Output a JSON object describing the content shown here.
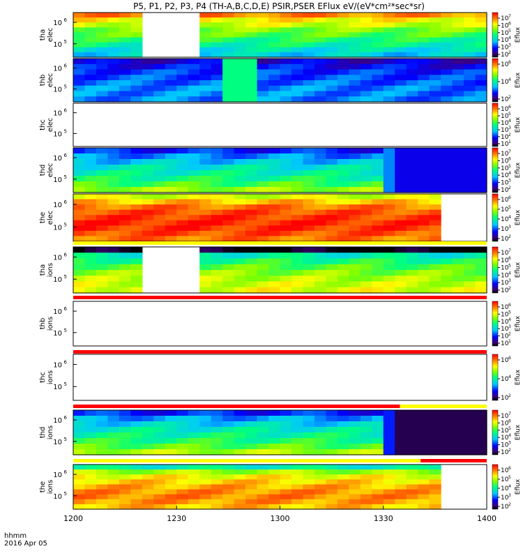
{
  "chart_data": {
    "type": "heatmap",
    "title": "P5, P1, P2, P3, P4 (TH-A,B,C,D,E) PSIR,PSER EFlux eV/(eV*cm²*sec*sr)",
    "x_axis": {
      "ticks": [
        "1200",
        "1230",
        "1300",
        "1330",
        "1400"
      ],
      "label_line1": "hhmm",
      "label_line2": "2016 Apr 05"
    },
    "colorbar_label": "Eflux",
    "panels": [
      {
        "probe": "tha",
        "species": "elec",
        "yticks": [
          6,
          5
        ],
        "cbar": [
          2,
          3,
          4,
          5,
          6,
          7
        ],
        "bands": [
          0.86,
          0.75,
          0.7,
          0.62,
          0.58,
          0.52,
          0.48,
          0.42,
          0.38
        ],
        "gaps": [
          [
            0.15,
            0.3
          ]
        ],
        "fills": [],
        "status": null
      },
      {
        "probe": "thb",
        "species": "elec",
        "yticks": [
          6,
          5
        ],
        "cbar": [
          2,
          4,
          6
        ],
        "bands": [
          0.16,
          0.2,
          0.24,
          0.26,
          0.28,
          0.3,
          0.3,
          0.3
        ],
        "gaps": [],
        "fills": [
          {
            "x0": 0.35,
            "x1": 0.43,
            "val": 0.5
          }
        ],
        "status": null
      },
      {
        "probe": "thc",
        "species": "elec",
        "yticks": [
          6,
          5
        ],
        "cbar": [
          1,
          2,
          3,
          4,
          5,
          6
        ],
        "bands": [],
        "gaps": [
          [
            0,
            1
          ]
        ],
        "fills": [],
        "status": null
      },
      {
        "probe": "thd",
        "species": "elec",
        "yticks": [
          6,
          5
        ],
        "cbar": [
          2,
          3,
          4,
          5,
          6,
          7
        ],
        "bands": [
          0.22,
          0.3,
          0.36,
          0.42,
          0.46,
          0.5,
          0.56,
          0.64
        ],
        "gaps": [],
        "fills": [
          {
            "x0": 0.73,
            "x1": 0.76,
            "val": 0.3
          },
          {
            "x0": 0.76,
            "x1": 1,
            "val": 0.18
          }
        ],
        "status": null
      },
      {
        "probe": "the",
        "species": "elec",
        "yticks": [
          6,
          5
        ],
        "cbar": [
          2,
          3,
          4,
          5,
          6
        ],
        "bands": [
          0.7,
          0.8,
          0.88,
          0.92,
          0.94,
          0.96,
          0.95,
          0.92,
          0.88
        ],
        "gaps": [
          [
            0.88,
            1
          ]
        ],
        "fills": [],
        "status": null
      },
      {
        "probe": "tha",
        "species": "ions",
        "yticks": [
          6,
          5
        ],
        "cbar": [
          2,
          3,
          4,
          5,
          6,
          7
        ],
        "bands": [
          0.0,
          0.45,
          0.52,
          0.58,
          0.63,
          0.67,
          0.7,
          0.72
        ],
        "gaps": [
          [
            0.15,
            0.3
          ]
        ],
        "fills": [],
        "status": [
          {
            "x0": 0,
            "x1": 1,
            "color": "#ffff00"
          }
        ]
      },
      {
        "probe": "thb",
        "species": "ions",
        "yticks": [
          6,
          5
        ],
        "cbar": [
          1,
          2,
          3,
          4,
          5,
          6
        ],
        "bands": [],
        "gaps": [
          [
            0,
            1
          ]
        ],
        "fills": [],
        "status": [
          {
            "x0": 0,
            "x1": 1,
            "color": "#ff0000"
          }
        ]
      },
      {
        "probe": "thc",
        "species": "ions",
        "yticks": [
          6,
          5
        ],
        "cbar": [
          2,
          4,
          6
        ],
        "bands": [],
        "gaps": [
          [
            0,
            1
          ]
        ],
        "fills": [],
        "status": [
          {
            "x0": 0,
            "x1": 1,
            "color": "#ff0000"
          }
        ]
      },
      {
        "probe": "thd",
        "species": "ions",
        "yticks": [
          6,
          5
        ],
        "cbar": [
          2,
          3,
          4,
          5,
          6,
          7
        ],
        "bands": [
          0.22,
          0.32,
          0.38,
          0.44,
          0.48,
          0.52,
          0.58,
          0.66
        ],
        "gaps": [],
        "fills": [
          {
            "x0": 0.73,
            "x1": 0.76,
            "val": 0.22
          },
          {
            "x0": 0.76,
            "x1": 1,
            "val": 0.05
          }
        ],
        "status": [
          {
            "x0": 0,
            "x1": 0.79,
            "color": "#ff0000"
          },
          {
            "x0": 0.79,
            "x1": 1,
            "color": "#ffff00"
          }
        ]
      },
      {
        "probe": "the",
        "species": "ions",
        "yticks": [
          6,
          5
        ],
        "cbar": [
          2,
          3,
          4,
          5,
          6
        ],
        "bands": [
          0.45,
          0.65,
          0.74,
          0.78,
          0.82,
          0.85,
          0.86,
          0.84,
          0.8
        ],
        "gaps": [
          [
            0.88,
            1
          ]
        ],
        "fills": [],
        "status": [
          {
            "x0": 0,
            "x1": 0.84,
            "color": "#ffff00"
          },
          {
            "x0": 0.84,
            "x1": 1,
            "color": "#ff0000"
          }
        ]
      }
    ]
  }
}
